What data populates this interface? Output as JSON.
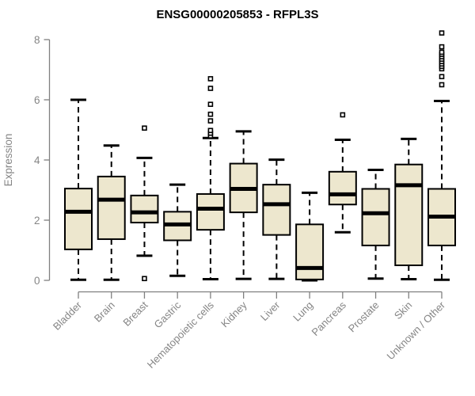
{
  "colors": {
    "background": "#ffffff",
    "box_fill": "#EDE7CE",
    "box_stroke": "#000000",
    "median": "#000000",
    "whisker": "#000000",
    "outlier_stroke": "#000000",
    "outlier_fill": "#ffffff",
    "axis": "#808080",
    "tick_label": "#858585",
    "title": "#000000"
  },
  "chart_data": {
    "type": "boxplot",
    "title": "ENSG00000205853 - RFPL3S",
    "xlabel": "",
    "ylabel": "Expression",
    "ylim": [
      0,
      8.6
    ],
    "yticks": [
      0,
      2,
      4,
      6,
      8
    ],
    "grid": false,
    "legend": null,
    "categories": [
      "Bladder",
      "Brain",
      "Breast",
      "Gastric",
      "Hematopoietic cells",
      "Kidney",
      "Liver",
      "Lung",
      "Pancreas",
      "Prostate",
      "Skin",
      "Unknown / Other"
    ],
    "boxes": [
      {
        "category": "Bladder",
        "whisker_low": 0.02,
        "q1": 1.03,
        "median": 2.28,
        "q3": 3.05,
        "whisker_high": 6.0,
        "outliers": []
      },
      {
        "category": "Brain",
        "whisker_low": 0.02,
        "q1": 1.37,
        "median": 2.68,
        "q3": 3.45,
        "whisker_high": 4.48,
        "outliers": []
      },
      {
        "category": "Breast",
        "whisker_low": 0.82,
        "q1": 1.92,
        "median": 2.26,
        "q3": 2.82,
        "whisker_high": 4.07,
        "outliers": [
          0.06,
          5.06
        ]
      },
      {
        "category": "Gastric",
        "whisker_low": 0.15,
        "q1": 1.33,
        "median": 1.86,
        "q3": 2.28,
        "whisker_high": 3.18,
        "outliers": []
      },
      {
        "category": "Hematopoietic cells",
        "whisker_low": 0.04,
        "q1": 1.68,
        "median": 2.38,
        "q3": 2.87,
        "whisker_high": 4.73,
        "outliers": [
          4.8,
          4.89,
          4.98,
          5.3,
          5.52,
          5.85,
          6.38,
          6.7
        ]
      },
      {
        "category": "Kidney",
        "whisker_low": 0.05,
        "q1": 2.26,
        "median": 3.04,
        "q3": 3.88,
        "whisker_high": 4.95,
        "outliers": []
      },
      {
        "category": "Liver",
        "whisker_low": 0.05,
        "q1": 1.51,
        "median": 2.53,
        "q3": 3.18,
        "whisker_high": 4.01,
        "outliers": []
      },
      {
        "category": "Lung",
        "whisker_low": 0.0,
        "q1": 0.03,
        "median": 0.41,
        "q3": 1.86,
        "whisker_high": 2.91,
        "outliers": []
      },
      {
        "category": "Pancreas",
        "whisker_low": 1.6,
        "q1": 2.52,
        "median": 2.86,
        "q3": 3.61,
        "whisker_high": 4.67,
        "outliers": [
          5.5
        ]
      },
      {
        "category": "Prostate",
        "whisker_low": 0.06,
        "q1": 1.16,
        "median": 2.23,
        "q3": 3.04,
        "whisker_high": 3.67,
        "outliers": []
      },
      {
        "category": "Skin",
        "whisker_low": 0.04,
        "q1": 0.5,
        "median": 3.16,
        "q3": 3.85,
        "whisker_high": 4.7,
        "outliers": []
      },
      {
        "category": "Unknown / Other",
        "whisker_low": 0.02,
        "q1": 1.16,
        "median": 2.12,
        "q3": 3.04,
        "whisker_high": 5.96,
        "outliers": [
          6.5,
          6.77,
          7.03,
          7.11,
          7.19,
          7.27,
          7.35,
          7.43,
          7.51,
          7.58,
          7.76,
          8.22
        ]
      }
    ]
  }
}
